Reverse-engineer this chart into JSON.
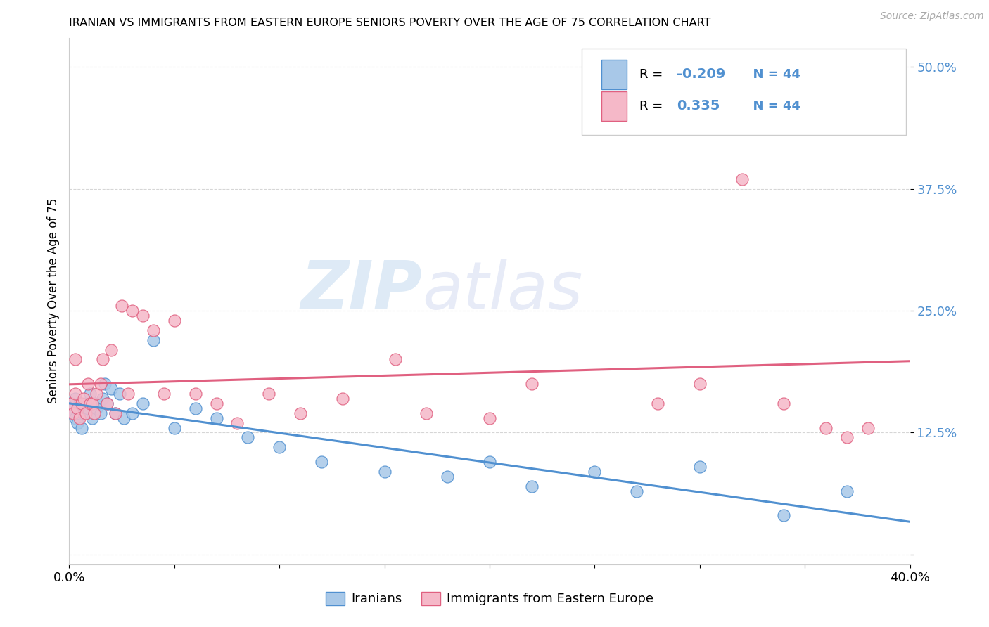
{
  "title": "IRANIAN VS IMMIGRANTS FROM EASTERN EUROPE SENIORS POVERTY OVER THE AGE OF 75 CORRELATION CHART",
  "source": "Source: ZipAtlas.com",
  "ylabel": "Seniors Poverty Over the Age of 75",
  "xlabel_iranians": "Iranians",
  "xlabel_eastern": "Immigrants from Eastern Europe",
  "xmin": 0.0,
  "xmax": 0.4,
  "ymin": -0.01,
  "ymax": 0.53,
  "ytick_vals": [
    0.0,
    0.125,
    0.25,
    0.375,
    0.5
  ],
  "ytick_labels": [
    "",
    "12.5%",
    "25.0%",
    "37.5%",
    "50.0%"
  ],
  "xtick_vals": [
    0.0,
    0.05,
    0.1,
    0.15,
    0.2,
    0.25,
    0.3,
    0.35,
    0.4
  ],
  "xtick_labels": [
    "0.0%",
    "",
    "",
    "",
    "",
    "",
    "",
    "",
    "40.0%"
  ],
  "R_iranians": -0.209,
  "N_iranians": 44,
  "R_eastern": 0.335,
  "N_eastern": 44,
  "color_iranians": "#a8c8e8",
  "color_eastern": "#f5b8c8",
  "line_color_iranians": "#5090d0",
  "line_color_eastern": "#e06080",
  "tick_label_color": "#5090d0",
  "iranians_x": [
    0.001,
    0.002,
    0.002,
    0.003,
    0.003,
    0.004,
    0.004,
    0.005,
    0.005,
    0.006,
    0.007,
    0.008,
    0.009,
    0.01,
    0.011,
    0.012,
    0.013,
    0.014,
    0.015,
    0.016,
    0.017,
    0.018,
    0.02,
    0.022,
    0.024,
    0.026,
    0.03,
    0.035,
    0.04,
    0.05,
    0.06,
    0.07,
    0.085,
    0.1,
    0.12,
    0.15,
    0.18,
    0.2,
    0.22,
    0.25,
    0.27,
    0.3,
    0.34,
    0.37
  ],
  "iranians_y": [
    0.155,
    0.15,
    0.145,
    0.16,
    0.14,
    0.135,
    0.15,
    0.145,
    0.155,
    0.13,
    0.145,
    0.155,
    0.15,
    0.165,
    0.14,
    0.145,
    0.15,
    0.155,
    0.145,
    0.16,
    0.175,
    0.155,
    0.17,
    0.145,
    0.165,
    0.14,
    0.145,
    0.155,
    0.22,
    0.13,
    0.15,
    0.14,
    0.12,
    0.11,
    0.095,
    0.085,
    0.08,
    0.095,
    0.07,
    0.085,
    0.065,
    0.09,
    0.04,
    0.065
  ],
  "eastern_x": [
    0.001,
    0.002,
    0.003,
    0.003,
    0.004,
    0.005,
    0.006,
    0.007,
    0.008,
    0.009,
    0.01,
    0.011,
    0.012,
    0.013,
    0.015,
    0.016,
    0.018,
    0.02,
    0.022,
    0.025,
    0.028,
    0.03,
    0.035,
    0.04,
    0.045,
    0.05,
    0.06,
    0.07,
    0.08,
    0.095,
    0.11,
    0.13,
    0.155,
    0.17,
    0.2,
    0.22,
    0.25,
    0.28,
    0.3,
    0.32,
    0.34,
    0.36,
    0.37,
    0.38
  ],
  "eastern_y": [
    0.155,
    0.145,
    0.2,
    0.165,
    0.15,
    0.14,
    0.155,
    0.16,
    0.145,
    0.175,
    0.155,
    0.155,
    0.145,
    0.165,
    0.175,
    0.2,
    0.155,
    0.21,
    0.145,
    0.255,
    0.165,
    0.25,
    0.245,
    0.23,
    0.165,
    0.24,
    0.165,
    0.155,
    0.135,
    0.165,
    0.145,
    0.16,
    0.2,
    0.145,
    0.14,
    0.175,
    0.455,
    0.155,
    0.175,
    0.385,
    0.155,
    0.13,
    0.12,
    0.13
  ],
  "watermark_zip": "ZIP",
  "watermark_atlas": "atlas",
  "background_color": "#ffffff",
  "grid_color": "#cccccc"
}
